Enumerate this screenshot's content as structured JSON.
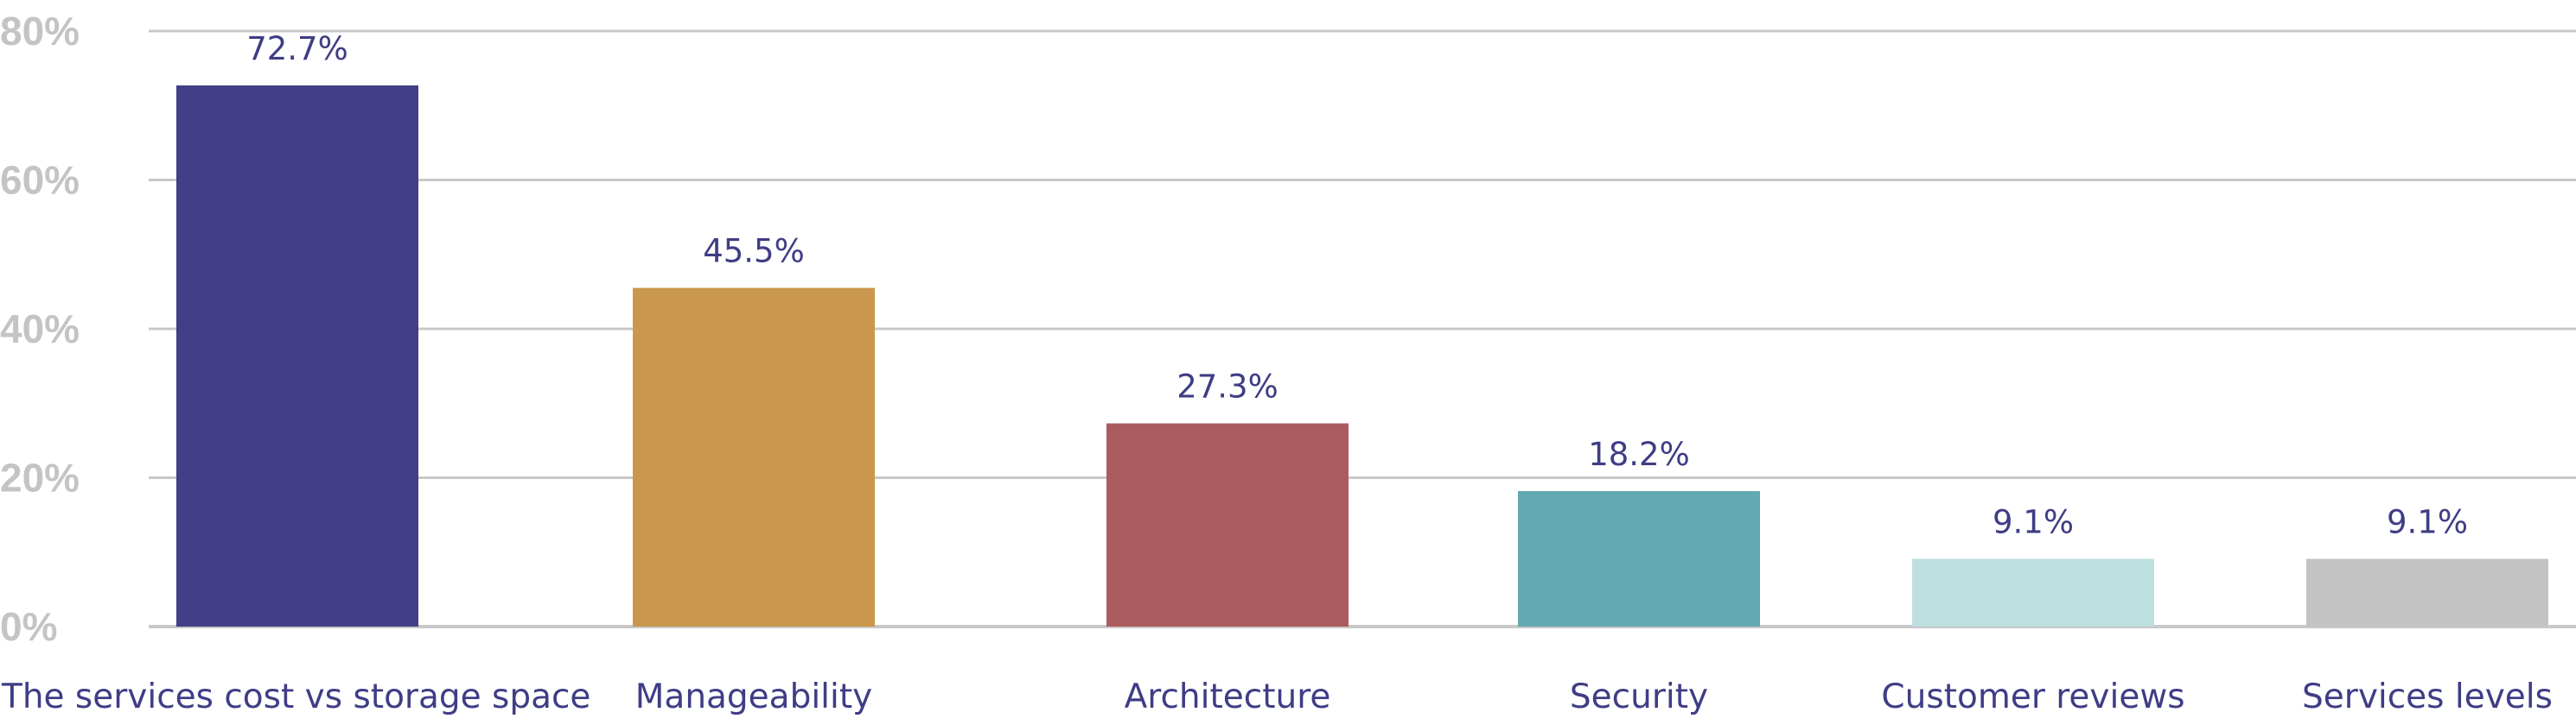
{
  "chart_data": {
    "type": "bar",
    "title": "",
    "xlabel": "",
    "ylabel": "",
    "ylim": [
      0,
      80
    ],
    "y_ticks": [
      0,
      20,
      40,
      60,
      80
    ],
    "y_tick_labels": [
      "0%",
      "20%",
      "40%",
      "60%",
      "80%"
    ],
    "grid": true,
    "legend": "none",
    "categories": [
      "The services cost vs storage space",
      "Manageability",
      "Architecture",
      "Security",
      "Customer reviews",
      "Services levels"
    ],
    "values": [
      72.7,
      45.5,
      27.3,
      18.2,
      9.1,
      9.1
    ],
    "value_labels": [
      "72.7%",
      "45.5%",
      "27.3%",
      "18.2%",
      "9.1%",
      "9.1%"
    ],
    "colors": [
      "#433e87",
      "#c9984e",
      "#a95b5d",
      "#62a9b1",
      "#bddfe0",
      "#c3c3c3"
    ],
    "grid_color": "#c8c8c8"
  }
}
